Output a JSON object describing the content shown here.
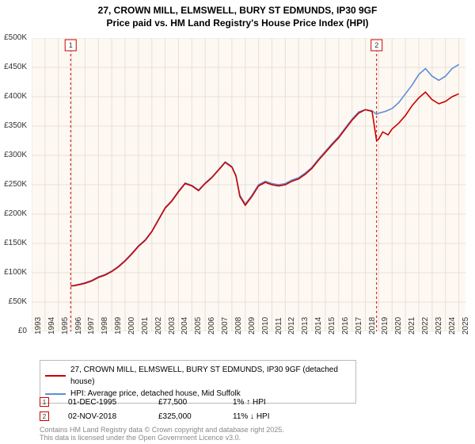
{
  "title_line1": "27, CROWN MILL, ELMSWELL, BURY ST EDMUNDS, IP30 9GF",
  "title_line2": "Price paid vs. HM Land Registry's House Price Index (HPI)",
  "chart": {
    "type": "line",
    "background_color": "#fdf8f2",
    "grid_color": "#e6e0d8",
    "x_years": [
      1993,
      1994,
      1995,
      1996,
      1997,
      1998,
      1999,
      2000,
      2001,
      2002,
      2003,
      2004,
      2005,
      2006,
      2007,
      2008,
      2009,
      2010,
      2011,
      2012,
      2013,
      2014,
      2015,
      2016,
      2017,
      2018,
      2019,
      2020,
      2021,
      2022,
      2023,
      2024,
      2025
    ],
    "y_ticks": [
      0,
      50000,
      100000,
      150000,
      200000,
      250000,
      300000,
      350000,
      400000,
      450000,
      500000
    ],
    "y_tick_labels": [
      "£0",
      "£50K",
      "£100K",
      "£150K",
      "£200K",
      "£250K",
      "£300K",
      "£350K",
      "£400K",
      "£450K",
      "£500K"
    ],
    "ylim": [
      0,
      500000
    ],
    "xlim": [
      1993,
      2025.5
    ],
    "series": [
      {
        "name": "price_paid",
        "color": "#cc0000",
        "width": 1.8,
        "data": [
          [
            1995.92,
            77500
          ],
          [
            1996.2,
            78000
          ],
          [
            1996.6,
            80000
          ],
          [
            1997,
            82000
          ],
          [
            1997.5,
            86000
          ],
          [
            1998,
            92000
          ],
          [
            1998.5,
            96000
          ],
          [
            1999,
            102000
          ],
          [
            1999.5,
            110000
          ],
          [
            2000,
            120000
          ],
          [
            2000.5,
            132000
          ],
          [
            2001,
            145000
          ],
          [
            2001.5,
            155000
          ],
          [
            2002,
            170000
          ],
          [
            2002.5,
            190000
          ],
          [
            2003,
            210000
          ],
          [
            2003.5,
            222000
          ],
          [
            2004,
            238000
          ],
          [
            2004.5,
            252000
          ],
          [
            2005,
            248000
          ],
          [
            2005.5,
            240000
          ],
          [
            2006,
            252000
          ],
          [
            2006.5,
            262000
          ],
          [
            2007,
            275000
          ],
          [
            2007.5,
            288000
          ],
          [
            2008,
            280000
          ],
          [
            2008.3,
            265000
          ],
          [
            2008.6,
            230000
          ],
          [
            2009,
            215000
          ],
          [
            2009.5,
            230000
          ],
          [
            2010,
            248000
          ],
          [
            2010.5,
            254000
          ],
          [
            2011,
            250000
          ],
          [
            2011.5,
            248000
          ],
          [
            2012,
            250000
          ],
          [
            2012.5,
            256000
          ],
          [
            2013,
            260000
          ],
          [
            2013.5,
            268000
          ],
          [
            2014,
            278000
          ],
          [
            2014.5,
            292000
          ],
          [
            2015,
            305000
          ],
          [
            2015.5,
            318000
          ],
          [
            2016,
            330000
          ],
          [
            2016.5,
            345000
          ],
          [
            2017,
            360000
          ],
          [
            2017.5,
            372000
          ],
          [
            2018,
            378000
          ],
          [
            2018.5,
            375000
          ],
          [
            2018.84,
            325000
          ],
          [
            2019,
            328000
          ],
          [
            2019.3,
            340000
          ],
          [
            2019.7,
            335000
          ],
          [
            2020,
            345000
          ],
          [
            2020.5,
            355000
          ],
          [
            2021,
            368000
          ],
          [
            2021.5,
            385000
          ],
          [
            2022,
            398000
          ],
          [
            2022.5,
            408000
          ],
          [
            2023,
            395000
          ],
          [
            2023.5,
            388000
          ],
          [
            2024,
            392000
          ],
          [
            2024.5,
            400000
          ],
          [
            2025,
            405000
          ]
        ]
      },
      {
        "name": "hpi",
        "color": "#5b8fd6",
        "width": 1.6,
        "data": [
          [
            1995.92,
            77500
          ],
          [
            1996.2,
            78500
          ],
          [
            1996.6,
            80500
          ],
          [
            1997,
            83000
          ],
          [
            1997.5,
            87000
          ],
          [
            1998,
            93000
          ],
          [
            1998.5,
            97000
          ],
          [
            1999,
            103000
          ],
          [
            1999.5,
            111000
          ],
          [
            2000,
            121000
          ],
          [
            2000.5,
            133000
          ],
          [
            2001,
            146000
          ],
          [
            2001.5,
            156000
          ],
          [
            2002,
            171000
          ],
          [
            2002.5,
            191000
          ],
          [
            2003,
            211000
          ],
          [
            2003.5,
            223000
          ],
          [
            2004,
            239000
          ],
          [
            2004.5,
            253000
          ],
          [
            2005,
            249000
          ],
          [
            2005.5,
            241000
          ],
          [
            2006,
            253000
          ],
          [
            2006.5,
            263000
          ],
          [
            2007,
            276000
          ],
          [
            2007.5,
            289000
          ],
          [
            2008,
            281000
          ],
          [
            2008.3,
            266000
          ],
          [
            2008.6,
            232000
          ],
          [
            2009,
            217000
          ],
          [
            2009.5,
            232000
          ],
          [
            2010,
            250000
          ],
          [
            2010.5,
            256000
          ],
          [
            2011,
            252000
          ],
          [
            2011.5,
            250000
          ],
          [
            2012,
            252000
          ],
          [
            2012.5,
            258000
          ],
          [
            2013,
            262000
          ],
          [
            2013.5,
            270000
          ],
          [
            2014,
            280000
          ],
          [
            2014.5,
            294000
          ],
          [
            2015,
            307000
          ],
          [
            2015.5,
            320000
          ],
          [
            2016,
            332000
          ],
          [
            2016.5,
            347000
          ],
          [
            2017,
            362000
          ],
          [
            2017.5,
            374000
          ],
          [
            2018,
            378000
          ],
          [
            2018.5,
            376000
          ],
          [
            2018.84,
            370000
          ],
          [
            2019,
            372000
          ],
          [
            2019.5,
            375000
          ],
          [
            2020,
            380000
          ],
          [
            2020.5,
            390000
          ],
          [
            2021,
            405000
          ],
          [
            2021.5,
            420000
          ],
          [
            2022,
            438000
          ],
          [
            2022.5,
            448000
          ],
          [
            2023,
            435000
          ],
          [
            2023.5,
            428000
          ],
          [
            2024,
            435000
          ],
          [
            2024.5,
            448000
          ],
          [
            2025,
            455000
          ]
        ]
      }
    ],
    "markers": [
      {
        "n": "1",
        "x": 1995.92,
        "color": "#cc0000"
      },
      {
        "n": "2",
        "x": 2018.84,
        "color": "#cc0000"
      }
    ]
  },
  "legend": {
    "items": [
      {
        "color": "#cc0000",
        "label": "27, CROWN MILL, ELMSWELL, BURY ST EDMUNDS, IP30 9GF (detached house)"
      },
      {
        "color": "#5b8fd6",
        "label": "HPI: Average price, detached house, Mid Suffolk"
      }
    ]
  },
  "events": [
    {
      "n": "1",
      "color": "#cc0000",
      "date": "01-DEC-1995",
      "price": "£77,500",
      "delta": "1% ↑ HPI"
    },
    {
      "n": "2",
      "color": "#cc0000",
      "date": "02-NOV-2018",
      "price": "£325,000",
      "delta": "11% ↓ HPI"
    }
  ],
  "footer_line1": "Contains HM Land Registry data © Crown copyright and database right 2025.",
  "footer_line2": "This data is licensed under the Open Government Licence v3.0."
}
